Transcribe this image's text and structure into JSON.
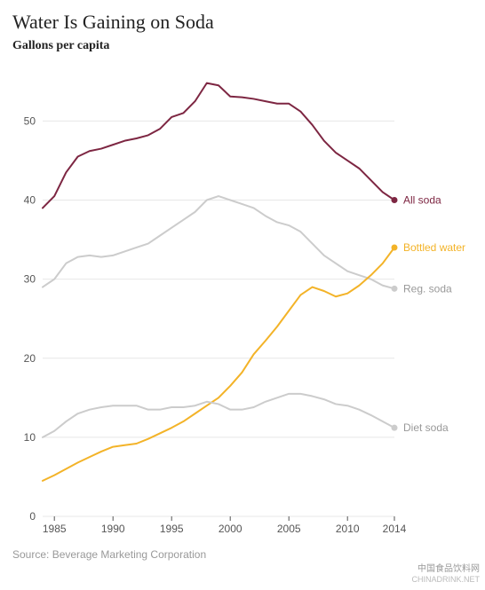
{
  "title": "Water Is Gaining on Soda",
  "subtitle": "Gallons per capita",
  "source": "Source: Beverage Marketing Corporation",
  "watermark": {
    "cn": "中国食品饮料网",
    "en": "CHINADRINK.NET"
  },
  "chart": {
    "type": "line",
    "background_color": "#ffffff",
    "grid_color": "#e7e7e7",
    "axis_color": "#555555",
    "label_font": "Arial, Helvetica, sans-serif",
    "label_fontsize": 12,
    "label_color": "#555555",
    "x": {
      "min": 1984,
      "max": 2014,
      "ticks": [
        1985,
        1990,
        1995,
        2000,
        2005,
        2010,
        2014
      ]
    },
    "y": {
      "min": 0,
      "max": 57,
      "ticks": [
        0,
        10,
        20,
        30,
        40,
        50
      ]
    },
    "line_width": 2,
    "end_marker_radius": 3.5,
    "series_label_fontsize": 12,
    "series": [
      {
        "name": "All soda",
        "color": "#7d2642",
        "label_color": "#7d2642",
        "x": [
          1984,
          1985,
          1986,
          1987,
          1988,
          1989,
          1990,
          1991,
          1992,
          1993,
          1994,
          1995,
          1996,
          1997,
          1998,
          1999,
          2000,
          2001,
          2002,
          2003,
          2004,
          2005,
          2006,
          2007,
          2008,
          2009,
          2010,
          2011,
          2012,
          2013,
          2014
        ],
        "y": [
          39.0,
          40.5,
          43.5,
          45.5,
          46.2,
          46.5,
          47.0,
          47.5,
          47.8,
          48.2,
          49.0,
          50.5,
          51.0,
          52.5,
          54.8,
          54.5,
          53.1,
          53.0,
          52.8,
          52.5,
          52.2,
          52.2,
          51.2,
          49.5,
          47.5,
          46.0,
          45.0,
          44.0,
          42.5,
          41.0,
          40.0
        ]
      },
      {
        "name": "Reg. soda",
        "color": "#cccccc",
        "label_color": "#999999",
        "x": [
          1984,
          1985,
          1986,
          1987,
          1988,
          1989,
          1990,
          1991,
          1992,
          1993,
          1994,
          1995,
          1996,
          1997,
          1998,
          1999,
          2000,
          2001,
          2002,
          2003,
          2004,
          2005,
          2006,
          2007,
          2008,
          2009,
          2010,
          2011,
          2012,
          2013,
          2014
        ],
        "y": [
          29.0,
          30.0,
          32.0,
          32.8,
          33.0,
          32.8,
          33.0,
          33.5,
          34.0,
          34.5,
          35.5,
          36.5,
          37.5,
          38.5,
          40.0,
          40.5,
          40.0,
          39.5,
          39.0,
          38.0,
          37.2,
          36.8,
          36.0,
          34.5,
          33.0,
          32.0,
          31.0,
          30.5,
          30.0,
          29.2,
          28.8
        ]
      },
      {
        "name": "Bottled water",
        "color": "#f3b328",
        "label_color": "#f3b328",
        "x": [
          1984,
          1985,
          1986,
          1987,
          1988,
          1989,
          1990,
          1991,
          1992,
          1993,
          1994,
          1995,
          1996,
          1997,
          1998,
          1999,
          2000,
          2001,
          2002,
          2003,
          2004,
          2005,
          2006,
          2007,
          2008,
          2009,
          2010,
          2011,
          2012,
          2013,
          2014
        ],
        "y": [
          4.5,
          5.2,
          6.0,
          6.8,
          7.5,
          8.2,
          8.8,
          9.0,
          9.2,
          9.8,
          10.5,
          11.2,
          12.0,
          13.0,
          14.0,
          15.0,
          16.5,
          18.2,
          20.5,
          22.2,
          24.0,
          26.0,
          28.0,
          29.0,
          28.5,
          27.8,
          28.2,
          29.2,
          30.5,
          32.0,
          34.0
        ]
      },
      {
        "name": "Diet soda",
        "color": "#cccccc",
        "label_color": "#999999",
        "x": [
          1984,
          1985,
          1986,
          1987,
          1988,
          1989,
          1990,
          1991,
          1992,
          1993,
          1994,
          1995,
          1996,
          1997,
          1998,
          1999,
          2000,
          2001,
          2002,
          2003,
          2004,
          2005,
          2006,
          2007,
          2008,
          2009,
          2010,
          2011,
          2012,
          2013,
          2014
        ],
        "y": [
          10.0,
          10.8,
          12.0,
          13.0,
          13.5,
          13.8,
          14.0,
          14.0,
          14.0,
          13.5,
          13.5,
          13.8,
          13.8,
          14.0,
          14.5,
          14.2,
          13.5,
          13.5,
          13.8,
          14.5,
          15.0,
          15.5,
          15.5,
          15.2,
          14.8,
          14.2,
          14.0,
          13.5,
          12.8,
          12.0,
          11.2
        ]
      }
    ]
  }
}
